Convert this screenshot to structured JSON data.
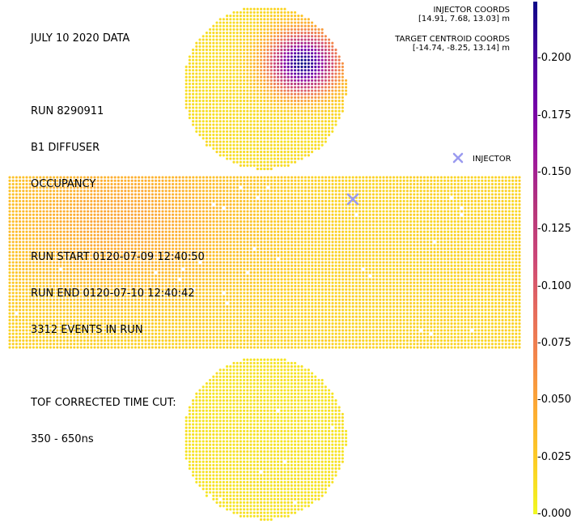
{
  "info": {
    "date_line": "JULY 10 2020 DATA",
    "run_number": "RUN 8290911",
    "diffuser": "B1 DIFFUSER",
    "plot_kind": "OCCUPANCY",
    "run_start": "RUN START 0120-07-09 12:40:50",
    "run_end": "RUN END 0120-07-10 12:40:42",
    "events": "3312 EVENTS IN RUN",
    "tof_cut_label": "TOF CORRECTED TIME CUT:",
    "tof_cut_range": "350 - 650ns"
  },
  "coords": {
    "injector_title": "INJECTOR COORDS",
    "injector_value": "[14.91, 7.68, 13.03] m",
    "target_title": "TARGET CENTROID COORDS",
    "target_value": "[-14.74, -8.25, 13.14] m"
  },
  "chart_data": {
    "type": "scatter",
    "title": "",
    "description": "PMT occupancy map: top cap, unrolled barrel and bottom cap. Color = occupancy fraction.",
    "colormap": "plasma_r",
    "color_range": [
      0.0,
      0.225
    ],
    "colorbar_ticks": [
      "0.000",
      "0.025",
      "0.050",
      "0.075",
      "0.100",
      "0.125",
      "0.150",
      "0.175",
      "0.200"
    ],
    "legend": [
      {
        "name": "INJECTOR",
        "marker": "x",
        "color": "#9a9af0"
      }
    ],
    "legend_placement": "right, between top cap and barrel",
    "regions": {
      "top_cap": {
        "background_level": 0.015,
        "hotspot": {
          "peak": 0.225,
          "location": "upper-right of top cap"
        }
      },
      "barrel": {
        "background_level": 0.02,
        "hotspot": {
          "peak": 0.05,
          "location": "left part of barrel"
        }
      },
      "bottom_cap": {
        "background_level": 0.012
      }
    },
    "injector_marker": {
      "location": "barrel, upper-right area"
    }
  },
  "colors": {
    "colorbar_top": "#0d0887",
    "colorbar_bottom": "#f0f921",
    "injector_marker": "#9a9af0"
  }
}
